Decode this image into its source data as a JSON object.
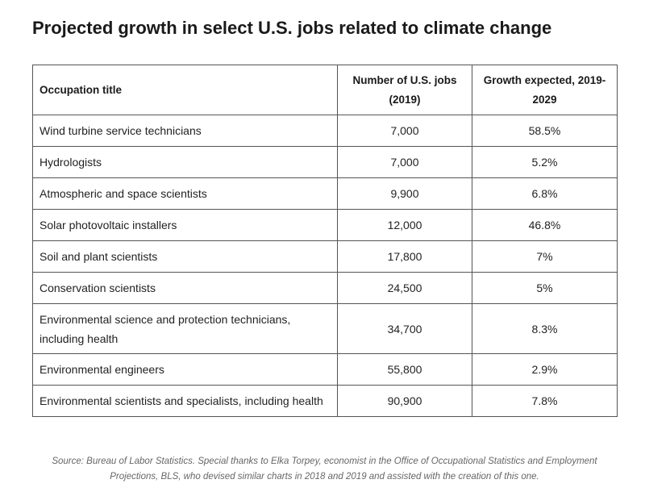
{
  "title": "Projected growth in select U.S. jobs related to climate change",
  "table": {
    "header": [
      "Occupation title",
      "Number of U.S. jobs (2019)",
      "Growth expected, 2019-2029"
    ],
    "rows": [
      [
        "Wind turbine service technicians",
        "7,000",
        "58.5%"
      ],
      [
        "Hydrologists",
        "7,000",
        "5.2%"
      ],
      [
        "Atmospheric and space scientists",
        "9,900",
        "6.8%"
      ],
      [
        "Solar photovoltaic installers",
        "12,000",
        "46.8%"
      ],
      [
        "Soil and plant scientists",
        "17,800",
        "7%"
      ],
      [
        "Conservation scientists",
        "24,500",
        "5%"
      ],
      [
        "Environmental science and protection technicians, including health",
        "34,700",
        "8.3%"
      ],
      [
        "Environmental engineers",
        "55,800",
        "2.9%"
      ],
      [
        "Environmental scientists and specialists, including health",
        "90,900",
        "7.8%"
      ]
    ]
  },
  "source": "Source: Bureau of Labor Statistics. Special thanks to Elka Torpey, economist in the Office of Occupational Statistics and Employment Projections, BLS, who devised similar charts in 2018 and 2019 and assisted with the creation of this one."
}
